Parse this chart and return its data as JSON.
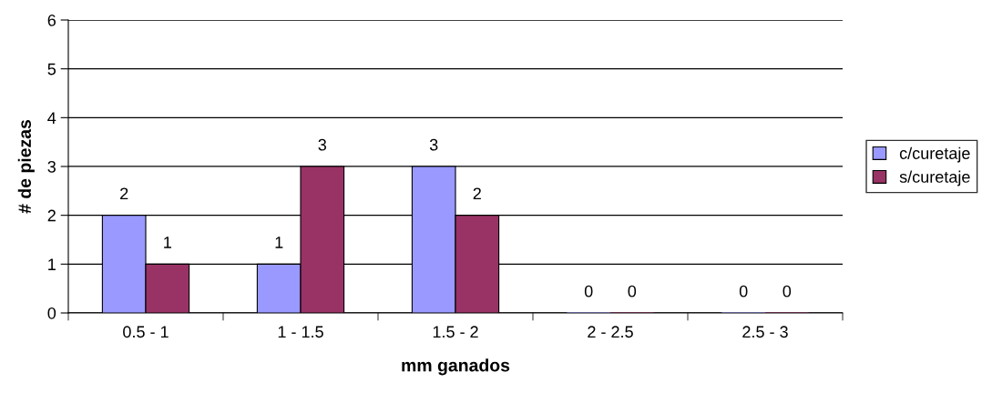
{
  "chart_data": {
    "type": "bar",
    "xlabel": "mm ganados",
    "ylabel": "# de piezas",
    "categories": [
      "0.5 - 1",
      "1 - 1.5",
      "1.5 - 2",
      "2 - 2.5",
      "2.5 - 3"
    ],
    "series": [
      {
        "name": "c/curetaje",
        "color": "#9999ff",
        "values": [
          2,
          1,
          3,
          0,
          0
        ]
      },
      {
        "name": "s/curetaje",
        "color": "#993366",
        "values": [
          1,
          3,
          2,
          0,
          0
        ]
      }
    ],
    "ylim": [
      0,
      6
    ],
    "yticks": [
      0,
      1,
      2,
      3,
      4,
      5,
      6
    ],
    "grid": "y",
    "legend": "right",
    "data_labels": true
  }
}
